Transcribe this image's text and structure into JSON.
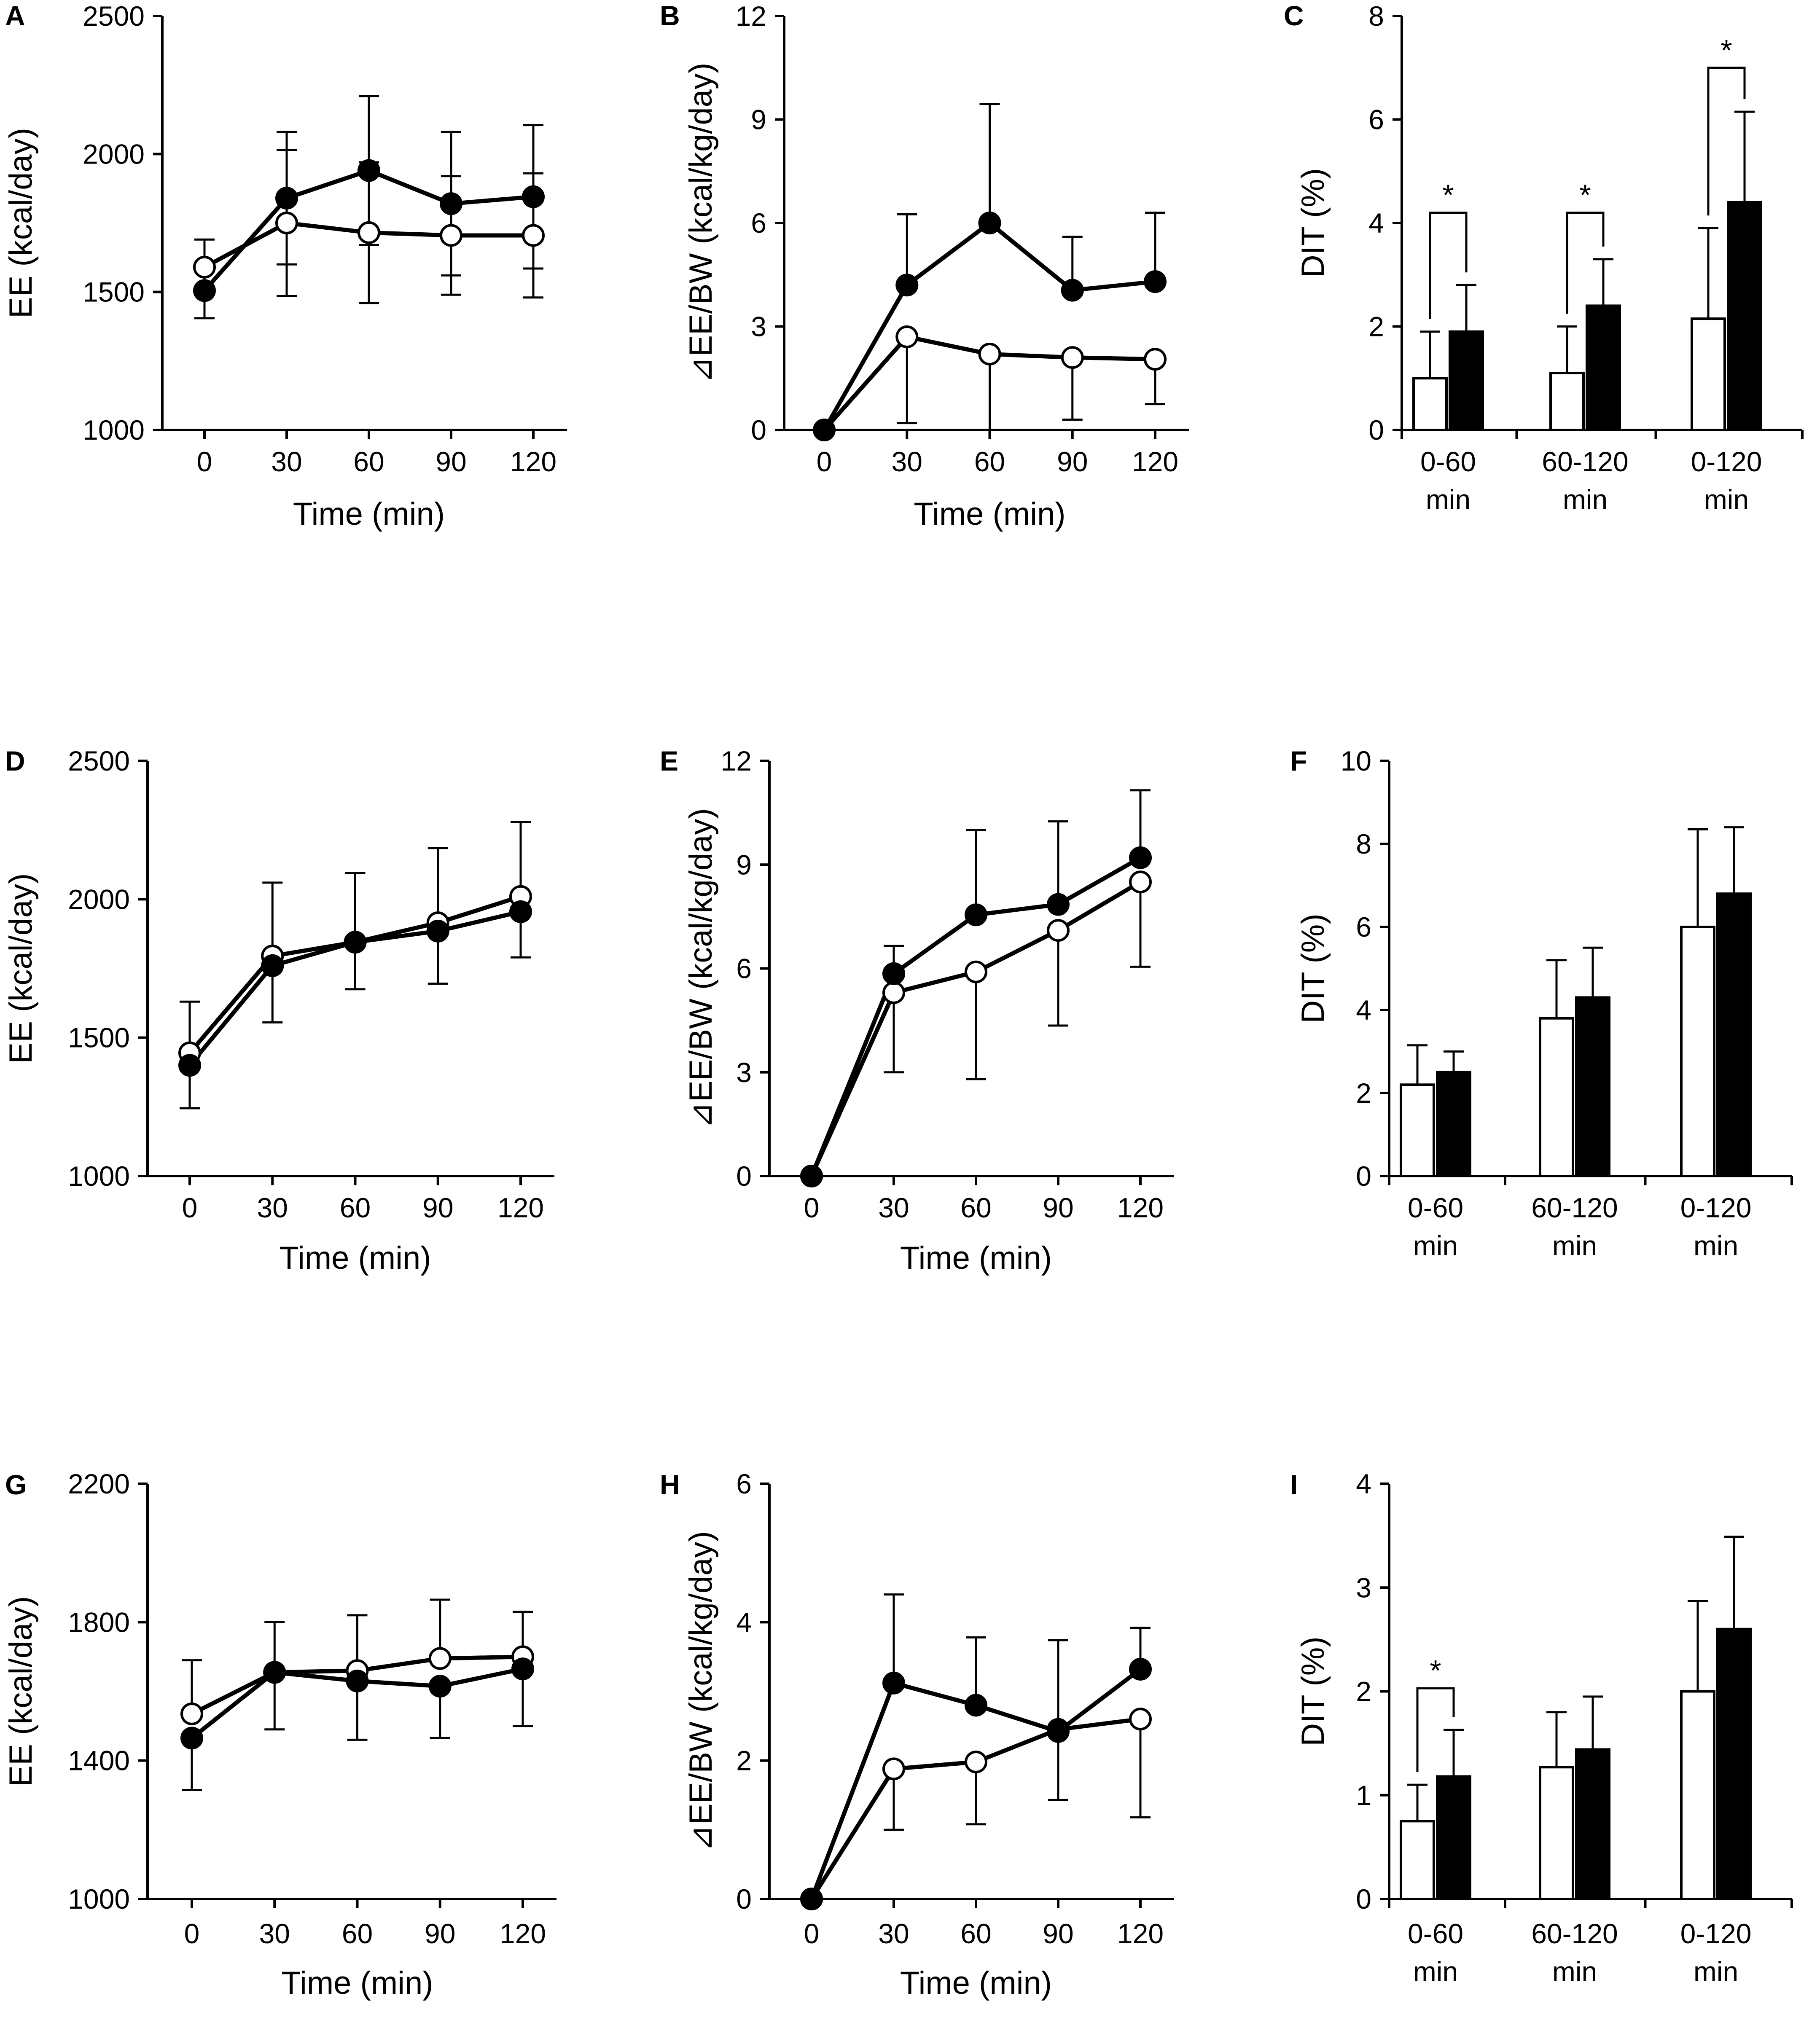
{
  "figure": {
    "background": "#ffffff",
    "ink": "#000000",
    "open_fill": "#ffffff",
    "filled_fill": "#000000"
  },
  "chart_data": [
    {
      "id": "A",
      "panel_label": "A",
      "type": "line",
      "ylabel": "EE (kcal/day)",
      "xlabel": "Time (min)",
      "ylim": [
        1000,
        2500
      ],
      "yticks": [
        1000,
        1500,
        2000,
        2500
      ],
      "ytick_labels": [
        "1000",
        "1500",
        "2000",
        "2500"
      ],
      "x": [
        0,
        30,
        60,
        90,
        120
      ],
      "xtick_labels": [
        "0",
        "30",
        "60",
        "90",
        "120"
      ],
      "series": [
        {
          "name": "open",
          "marker": "open",
          "values": [
            1590,
            1750,
            1715,
            1705,
            1705
          ],
          "err": [
            100,
            265,
            255,
            215,
            225
          ],
          "err_dir": "both"
        },
        {
          "name": "filled",
          "marker": "filled",
          "values": [
            1505,
            1840,
            1940,
            1820,
            1845
          ],
          "err": [
            100,
            240,
            270,
            260,
            260
          ],
          "err_dir": "both"
        }
      ]
    },
    {
      "id": "B",
      "panel_label": "B",
      "type": "line",
      "ylabel": "⊿EE/BW (kcal/kg/day)",
      "xlabel": "Time (min)",
      "ylim": [
        0,
        12
      ],
      "yticks": [
        0,
        3,
        6,
        9,
        12
      ],
      "ytick_labels": [
        "0",
        "3",
        "6",
        "9",
        "12"
      ],
      "x": [
        0,
        30,
        60,
        90,
        120
      ],
      "xtick_labels": [
        "0",
        "30",
        "60",
        "90",
        "120"
      ],
      "series": [
        {
          "name": "open",
          "marker": "open",
          "values": [
            0,
            2.7,
            2.2,
            2.1,
            2.05
          ],
          "err": [
            0,
            2.5,
            2.2,
            1.8,
            1.3
          ],
          "err_dir": "down"
        },
        {
          "name": "filled",
          "marker": "filled",
          "values": [
            0,
            4.2,
            6.0,
            4.05,
            4.3
          ],
          "err": [
            0,
            2.05,
            3.45,
            1.55,
            2.0
          ],
          "err_dir": "up"
        }
      ]
    },
    {
      "id": "C",
      "panel_label": "C",
      "type": "bar",
      "ylabel": "DIT (%)",
      "ylim": [
        0,
        8
      ],
      "yticks": [
        0,
        2,
        4,
        6,
        8
      ],
      "ytick_labels": [
        "0",
        "2",
        "4",
        "6",
        "8"
      ],
      "categories": [
        [
          "0-60",
          "min"
        ],
        [
          "60-120",
          "min"
        ],
        [
          "0-120",
          "min"
        ]
      ],
      "series": [
        {
          "name": "open",
          "fill": "open",
          "values": [
            1.0,
            1.1,
            2.15
          ],
          "err": [
            0.9,
            0.9,
            1.75
          ]
        },
        {
          "name": "filled",
          "fill": "filled",
          "values": [
            1.9,
            2.4,
            4.4
          ],
          "err": [
            0.9,
            0.9,
            1.75
          ]
        }
      ],
      "significance": [
        {
          "category": 0,
          "level": 4.2,
          "label": "*"
        },
        {
          "category": 1,
          "level": 4.2,
          "label": "*"
        },
        {
          "category": 2,
          "level": 7.0,
          "label": "*"
        }
      ]
    },
    {
      "id": "D",
      "panel_label": "D",
      "type": "line",
      "ylabel": "EE (kcal/day)",
      "xlabel": "Time (min)",
      "ylim": [
        1000,
        2500
      ],
      "yticks": [
        1000,
        1500,
        2000,
        2500
      ],
      "ytick_labels": [
        "1000",
        "1500",
        "2000",
        "2500"
      ],
      "x": [
        0,
        30,
        60,
        90,
        120
      ],
      "xtick_labels": [
        "0",
        "30",
        "60",
        "90",
        "120"
      ],
      "series": [
        {
          "name": "open",
          "marker": "open",
          "values": [
            1445,
            1795,
            1845,
            1915,
            2010
          ],
          "err": [
            185,
            265,
            250,
            270,
            270
          ],
          "err_dir": "up"
        },
        {
          "name": "filled",
          "marker": "filled",
          "values": [
            1400,
            1760,
            1845,
            1885,
            1955
          ],
          "err": [
            155,
            205,
            170,
            190,
            165
          ],
          "err_dir": "down"
        }
      ]
    },
    {
      "id": "E",
      "panel_label": "E",
      "type": "line",
      "ylabel": "⊿EE/BW (kcal/kg/day)",
      "xlabel": "Time (min)",
      "ylim": [
        0,
        12
      ],
      "yticks": [
        0,
        3,
        6,
        9,
        12
      ],
      "ytick_labels": [
        "0",
        "3",
        "6",
        "9",
        "12"
      ],
      "x": [
        0,
        30,
        60,
        90,
        120
      ],
      "xtick_labels": [
        "0",
        "30",
        "60",
        "90",
        "120"
      ],
      "series": [
        {
          "name": "open",
          "marker": "open",
          "values": [
            0,
            5.3,
            5.9,
            7.1,
            8.5
          ],
          "err": [
            0,
            2.3,
            3.1,
            2.75,
            2.45
          ],
          "err_dir": "down"
        },
        {
          "name": "filled",
          "marker": "filled",
          "values": [
            0,
            5.85,
            7.55,
            7.85,
            9.2
          ],
          "err": [
            0,
            0.8,
            2.45,
            2.4,
            1.95
          ],
          "err_dir": "up"
        }
      ]
    },
    {
      "id": "F",
      "panel_label": "F",
      "type": "bar",
      "ylabel": "DIT (%)",
      "ylim": [
        0,
        10
      ],
      "yticks": [
        0,
        2,
        4,
        6,
        8,
        10
      ],
      "ytick_labels": [
        "0",
        "2",
        "4",
        "6",
        "8",
        "10"
      ],
      "categories": [
        [
          "0-60",
          "min"
        ],
        [
          "60-120",
          "min"
        ],
        [
          "0-120",
          "min"
        ]
      ],
      "series": [
        {
          "name": "open",
          "fill": "open",
          "values": [
            2.2,
            3.8,
            6.0
          ],
          "err": [
            0.95,
            1.4,
            2.35
          ]
        },
        {
          "name": "filled",
          "fill": "filled",
          "values": [
            2.5,
            4.3,
            6.8
          ],
          "err": [
            0.5,
            1.2,
            1.6
          ]
        }
      ],
      "significance": []
    },
    {
      "id": "G",
      "panel_label": "G",
      "type": "line",
      "ylabel": "EE (kcal/day)",
      "xlabel": "Time (min)",
      "ylim": [
        1000,
        2200
      ],
      "yticks": [
        1000,
        1400,
        1800,
        2200
      ],
      "ytick_labels": [
        "1000",
        "1400",
        "1800",
        "2200"
      ],
      "x": [
        0,
        30,
        60,
        90,
        120
      ],
      "xtick_labels": [
        "0",
        "30",
        "60",
        "90",
        "120"
      ],
      "series": [
        {
          "name": "open",
          "marker": "open",
          "values": [
            1535,
            1655,
            1660,
            1695,
            1700
          ],
          "err": [
            155,
            145,
            160,
            170,
            130
          ],
          "err_dir": "up"
        },
        {
          "name": "filled",
          "marker": "filled",
          "values": [
            1465,
            1655,
            1630,
            1615,
            1665
          ],
          "err": [
            150,
            165,
            170,
            150,
            165
          ],
          "err_dir": "down"
        }
      ]
    },
    {
      "id": "H",
      "panel_label": "H",
      "type": "line",
      "ylabel": "⊿EE/BW (kcal/kg/day)",
      "xlabel": "Time (min)",
      "ylim": [
        0,
        6
      ],
      "yticks": [
        0,
        2,
        4,
        6
      ],
      "ytick_labels": [
        "0",
        "2",
        "4",
        "6"
      ],
      "x": [
        0,
        30,
        60,
        90,
        120
      ],
      "xtick_labels": [
        "0",
        "30",
        "60",
        "90",
        "120"
      ],
      "series": [
        {
          "name": "open",
          "marker": "open",
          "values": [
            0,
            1.88,
            1.98,
            2.45,
            2.6
          ],
          "err": [
            0,
            0.88,
            0.9,
            1.02,
            1.42
          ],
          "err_dir": "down"
        },
        {
          "name": "filled",
          "marker": "filled",
          "values": [
            0,
            3.12,
            2.8,
            2.42,
            3.32
          ],
          "err": [
            0,
            1.28,
            0.98,
            1.32,
            0.6
          ],
          "err_dir": "up"
        }
      ]
    },
    {
      "id": "I",
      "panel_label": "I",
      "type": "bar",
      "ylabel": "DIT (%)",
      "ylim": [
        0,
        4
      ],
      "yticks": [
        0,
        1,
        2,
        3,
        4
      ],
      "ytick_labels": [
        "0",
        "1",
        "2",
        "3",
        "4"
      ],
      "categories": [
        [
          "0-60",
          "min"
        ],
        [
          "60-120",
          "min"
        ],
        [
          "0-120",
          "min"
        ]
      ],
      "series": [
        {
          "name": "open",
          "fill": "open",
          "values": [
            0.75,
            1.27,
            2.0
          ],
          "err": [
            0.35,
            0.53,
            0.87
          ]
        },
        {
          "name": "filled",
          "fill": "filled",
          "values": [
            1.18,
            1.44,
            2.6
          ],
          "err": [
            0.45,
            0.51,
            0.89
          ]
        }
      ],
      "significance": [
        {
          "category": 0,
          "level": 2.03,
          "label": "*"
        }
      ]
    }
  ]
}
